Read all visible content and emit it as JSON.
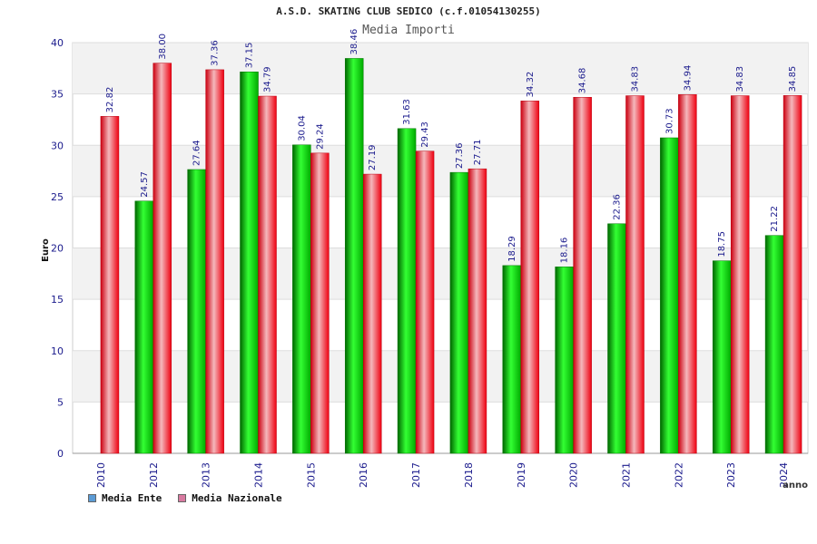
{
  "chart_data": {
    "type": "bar",
    "title": "A.S.D. SKATING CLUB SEDICO (c.f.01054130255)",
    "subtitle": "Media Importi",
    "xlabel": "anno",
    "ylabel": "Euro",
    "ylim": [
      0,
      40
    ],
    "yticks": [
      0,
      5,
      10,
      15,
      20,
      25,
      30,
      35,
      40
    ],
    "grid": true,
    "legend_position": "bottom-left",
    "categories": [
      "2010",
      "2012",
      "2013",
      "2014",
      "2015",
      "2016",
      "2017",
      "2018",
      "2019",
      "2020",
      "2021",
      "2022",
      "2023",
      "2024"
    ],
    "series": [
      {
        "name": "Media Ente",
        "color": "#00c000",
        "legend_color": "#5b9bd5",
        "values": [
          null,
          24.57,
          27.64,
          37.15,
          30.04,
          38.46,
          31.63,
          27.36,
          18.29,
          18.16,
          22.36,
          30.73,
          18.75,
          21.22
        ],
        "labels": [
          "",
          "24.57",
          "27.64",
          "37.15",
          "30.04",
          "38.46",
          "31.63",
          "27.36",
          "18.29",
          "18.16",
          "22.36",
          "30.73",
          "18.75",
          "21.22"
        ]
      },
      {
        "name": "Media Nazionale",
        "color": "#e81020",
        "legend_color": "#d87aa0",
        "values": [
          32.82,
          38.0,
          37.36,
          34.79,
          29.24,
          27.19,
          29.43,
          27.71,
          34.32,
          34.68,
          34.83,
          34.94,
          34.83,
          34.85
        ],
        "labels": [
          "32.82",
          "38.00",
          "37.36",
          "34.79",
          "29.24",
          "27.19",
          "29.43",
          "27.71",
          "34.32",
          "34.68",
          "34.83",
          "34.94",
          "34.83",
          "34.85"
        ]
      }
    ]
  }
}
